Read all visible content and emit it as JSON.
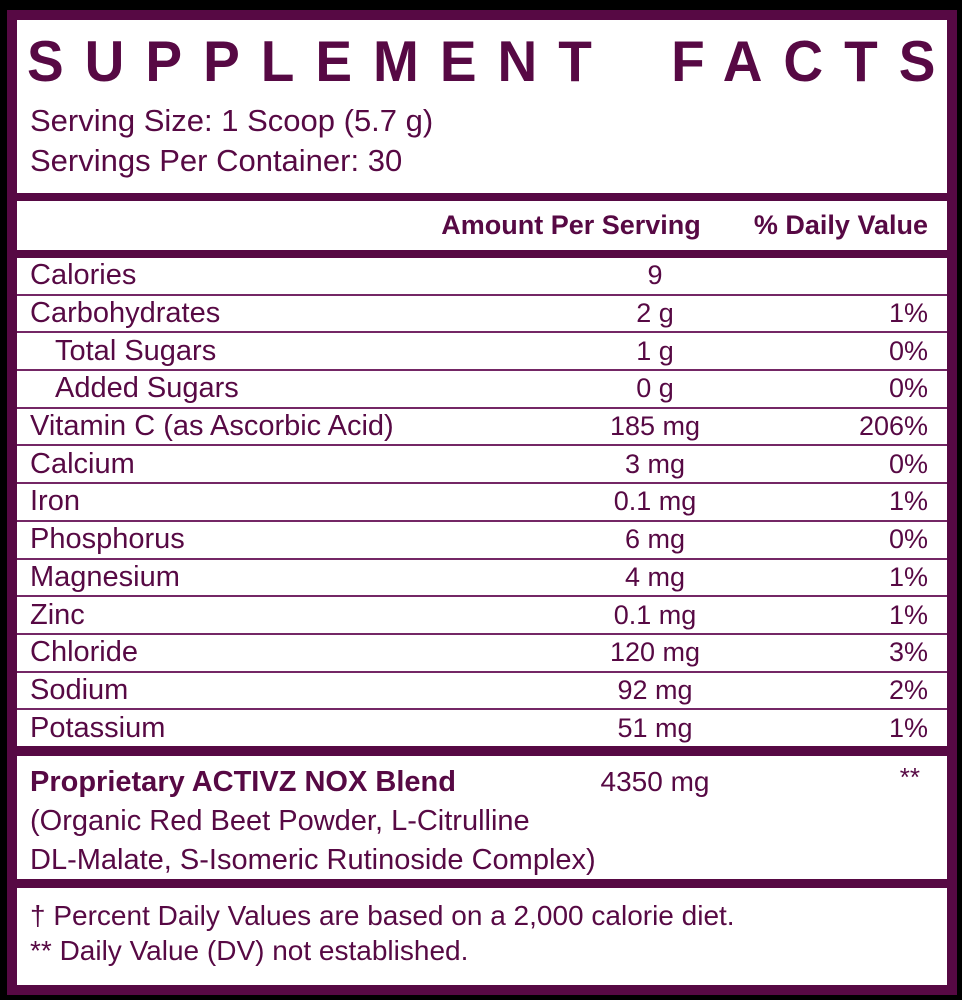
{
  "colors": {
    "maroon": "#570944",
    "thin_line": "#742765",
    "background": "#000000",
    "panel": "#ffffff"
  },
  "header": {
    "title": "SUPPLEMENT FACTS",
    "serving_size": "Serving Size: 1 Scoop (5.7 g)",
    "servings_per_container": "Servings Per Container: 30"
  },
  "table": {
    "columns": {
      "amount": "Amount Per Serving",
      "dv": "% Daily Value"
    },
    "rows": [
      {
        "label": "Calories",
        "amount": "9",
        "dv": "",
        "indent": false
      },
      {
        "label": "Carbohydrates",
        "amount": "2 g",
        "dv": "1%",
        "indent": false
      },
      {
        "label": "Total Sugars",
        "amount": "1 g",
        "dv": "0%",
        "indent": true
      },
      {
        "label": "Added Sugars",
        "amount": "0 g",
        "dv": "0%",
        "indent": true
      },
      {
        "label": "Vitamin C (as Ascorbic Acid)",
        "amount": "185 mg",
        "dv": "206%",
        "indent": false
      },
      {
        "label": "Calcium",
        "amount": "3 mg",
        "dv": "0%",
        "indent": false
      },
      {
        "label": "Iron",
        "amount": "0.1 mg",
        "dv": "1%",
        "indent": false
      },
      {
        "label": "Phosphorus",
        "amount": "6 mg",
        "dv": "0%",
        "indent": false
      },
      {
        "label": "Magnesium",
        "amount": "4 mg",
        "dv": "1%",
        "indent": false
      },
      {
        "label": "Zinc",
        "amount": "0.1 mg",
        "dv": "1%",
        "indent": false
      },
      {
        "label": "Chloride",
        "amount": "120 mg",
        "dv": "3%",
        "indent": false
      },
      {
        "label": "Sodium",
        "amount": "92 mg",
        "dv": "2%",
        "indent": false
      },
      {
        "label": "Potassium",
        "amount": "51 mg",
        "dv": "1%",
        "indent": false
      }
    ]
  },
  "proprietary": {
    "name": "Proprietary ACTIVZ NOX Blend",
    "amount": "4350 mg",
    "dv": "**",
    "description_line1": "(Organic Red Beet Powder, L-Citrulline",
    "description_line2": "DL-Malate, S-Isomeric Rutinoside Complex)"
  },
  "footnotes": {
    "daily_value": "† Percent Daily Values are based on a 2,000 calorie diet.",
    "not_established": "** Daily Value (DV) not established."
  }
}
